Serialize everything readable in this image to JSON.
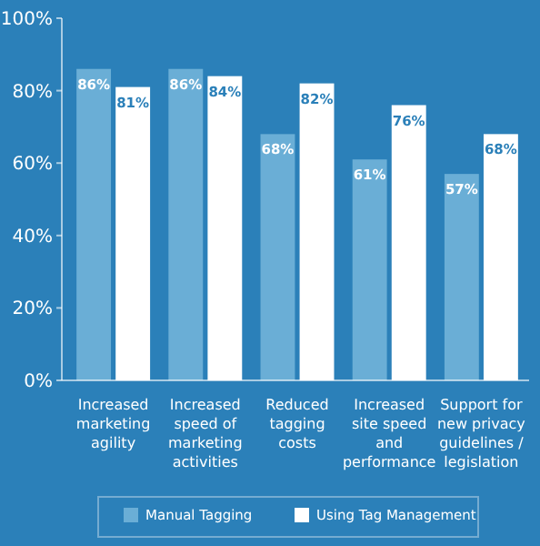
{
  "chart_data": {
    "type": "bar",
    "categories": [
      "Increased marketing agility",
      "Increased speed of marketing activities",
      "Reduced tagging costs",
      "Increased site speed and performance",
      "Support for new privacy guidelines / legislation"
    ],
    "series": [
      {
        "name": "Manual Tagging",
        "color": "#6aaed6",
        "values": [
          86,
          86,
          68,
          61,
          57
        ],
        "value_labels": [
          "86%",
          "86%",
          "68%",
          "61%",
          "57%"
        ]
      },
      {
        "name": "Using Tag Management",
        "color": "#ffffff",
        "values": [
          81,
          84,
          82,
          76,
          68
        ],
        "value_labels": [
          "81%",
          "84%",
          "82%",
          "76%",
          "68%"
        ]
      }
    ],
    "ylim": [
      0,
      100
    ],
    "yticks": [
      {
        "value": 0,
        "label": "0%"
      },
      {
        "value": 20,
        "label": "20%"
      },
      {
        "value": 40,
        "label": "40%"
      },
      {
        "value": 60,
        "label": "60%"
      },
      {
        "value": 80,
        "label": "80%"
      },
      {
        "value": 100,
        "label": "100%"
      }
    ],
    "grid": false,
    "legend": "bottom"
  }
}
